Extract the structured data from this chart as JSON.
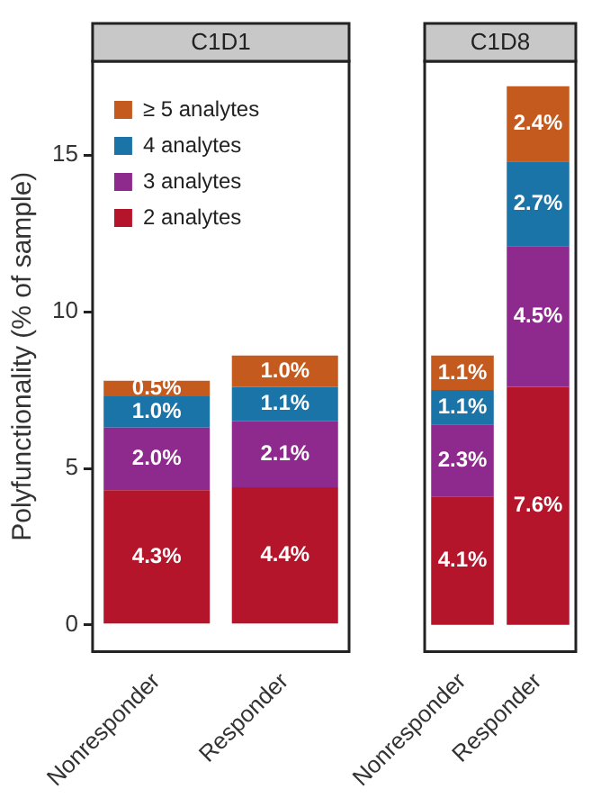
{
  "chart_data": [
    {
      "type": "bar",
      "title": "C1D1",
      "ylabel": "Polyfunctionality (% of sample)",
      "categories": [
        "Nonresponder",
        "Responder"
      ],
      "stacked": true,
      "ylim": [
        -0.85,
        18
      ],
      "yticks": [
        0,
        5,
        10,
        15
      ],
      "grid": false,
      "legend": "top left",
      "series": [
        {
          "name": "2 analytes",
          "color": "#b5152b",
          "values": [
            4.3,
            4.4
          ],
          "value_labels": [
            "4.3%",
            "4.4%"
          ]
        },
        {
          "name": "3 analytes",
          "color": "#8e2a8e",
          "values": [
            2.0,
            2.1
          ],
          "value_labels": [
            "2.0%",
            "2.1%"
          ]
        },
        {
          "name": "4 analytes",
          "color": "#1a74a8",
          "values": [
            1.0,
            1.1
          ],
          "value_labels": [
            "1.0%",
            "1.1%"
          ]
        },
        {
          "name": "≥ 5 analytes",
          "color": "#c55a1e",
          "values": [
            0.5,
            1.0
          ],
          "value_labels": [
            "0.5%",
            "1.0%"
          ]
        }
      ]
    },
    {
      "type": "bar",
      "title": "C1D8",
      "categories": [
        "Nonresponder",
        "Responder"
      ],
      "stacked": true,
      "ylim": [
        -0.85,
        18
      ],
      "grid": false,
      "tick_labels": "x",
      "series": [
        {
          "color": "#b5152b",
          "values": [
            4.1,
            7.6
          ],
          "value_labels": [
            "4.1%",
            "7.6%"
          ]
        },
        {
          "color": "#8e2a8e",
          "values": [
            2.3,
            4.5
          ],
          "value_labels": [
            "2.3%",
            "4.5%"
          ]
        },
        {
          "color": "#1a74a8",
          "values": [
            1.1,
            2.7
          ],
          "value_labels": [
            "1.1%",
            "2.7%"
          ]
        },
        {
          "color": "#c55a1e",
          "values": [
            1.1,
            2.4
          ],
          "value_labels": [
            "1.1%",
            "2.4%"
          ]
        }
      ]
    }
  ]
}
